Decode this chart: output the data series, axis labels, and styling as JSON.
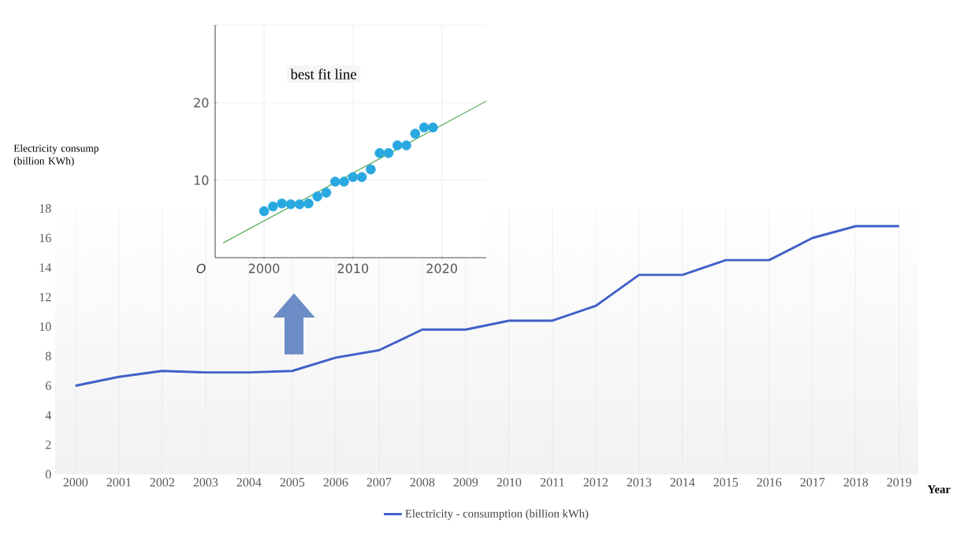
{
  "chart_data": [
    {
      "type": "line",
      "categories": [
        "2000",
        "2001",
        "2002",
        "2003",
        "2004",
        "2005",
        "2006",
        "2007",
        "2008",
        "2009",
        "2010",
        "2011",
        "2012",
        "2013",
        "2014",
        "2015",
        "2016",
        "2017",
        "2018",
        "2019"
      ],
      "series": [
        {
          "name": "Electricity - consumption (billion kWh)",
          "color": "#4060c8",
          "values": [
            6.0,
            6.6,
            7.0,
            6.9,
            6.9,
            7.0,
            7.9,
            8.4,
            9.8,
            9.8,
            10.4,
            10.4,
            11.4,
            13.5,
            13.5,
            14.5,
            14.5,
            16.0,
            16.8,
            16.8
          ]
        }
      ],
      "xlabel": "Year",
      "ylabel": "Electricity consump (billion KWh)",
      "ylim": [
        0,
        18
      ],
      "yticks": [
        0,
        2,
        4,
        6,
        8,
        10,
        12,
        14,
        16,
        18
      ],
      "grid": "x",
      "legend": "bottom"
    },
    {
      "type": "scatter",
      "x": [
        2000,
        2001,
        2002,
        2003,
        2004,
        2005,
        2006,
        2007,
        2008,
        2009,
        2010,
        2011,
        2012,
        2013,
        2014,
        2015,
        2016,
        2017,
        2018,
        2019
      ],
      "series": [
        {
          "type": "scatter",
          "color": "#29a8e0",
          "marker": "circle",
          "values": [
            6.0,
            6.6,
            7.0,
            6.9,
            6.9,
            7.0,
            7.9,
            8.4,
            9.8,
            9.8,
            10.4,
            10.4,
            11.4,
            13.5,
            13.5,
            14.5,
            14.5,
            16.0,
            16.8,
            16.8
          ]
        },
        {
          "type": "line",
          "color": "#3aa040",
          "x": [
            1995.4,
            2025
          ],
          "values": [
            1.9,
            20.2
          ]
        }
      ],
      "xlim": [
        1994.5,
        2025
      ],
      "ylim": [
        0,
        30
      ],
      "xticks": [
        2000,
        2010,
        2020
      ],
      "yticks": [
        10,
        20,
        {
          "value": 30,
          "label": null
        }
      ],
      "grid": true,
      "legend": false,
      "annotations": [
        "best fit line",
        "O"
      ]
    }
  ]
}
